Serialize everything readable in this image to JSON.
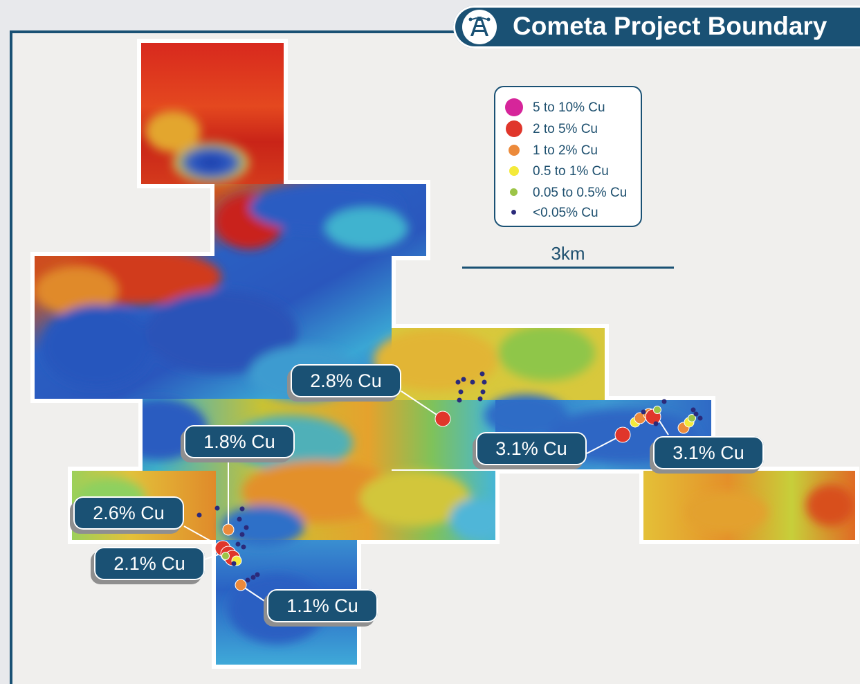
{
  "title": "Cometa Project Boundary",
  "title_icon": "mine-headframe-icon",
  "legend": [
    {
      "label": "5 to 10% Cu",
      "color": "#d6259a"
    },
    {
      "label": "2 to 5% Cu",
      "color": "#e0362b"
    },
    {
      "label": "1 to 2% Cu",
      "color": "#ec8a3b"
    },
    {
      "label": "0.5 to 1% Cu",
      "color": "#f4ea3a"
    },
    {
      "label": "0.05 to 0.5% Cu",
      "color": "#9cc447"
    },
    {
      "label": "<0.05% Cu",
      "color": "#2b2a7a"
    }
  ],
  "scale_bar": {
    "label": "3km"
  },
  "callouts": [
    {
      "label": "2.8% Cu"
    },
    {
      "label": "3.1% Cu"
    },
    {
      "label": "3.1% Cu"
    },
    {
      "label": "1.8% Cu"
    },
    {
      "label": "2.6% Cu"
    },
    {
      "label": "2.1% Cu"
    },
    {
      "label": "1.1% Cu"
    }
  ],
  "colors": {
    "frame": "#1a5174",
    "background": "#f0efed"
  }
}
